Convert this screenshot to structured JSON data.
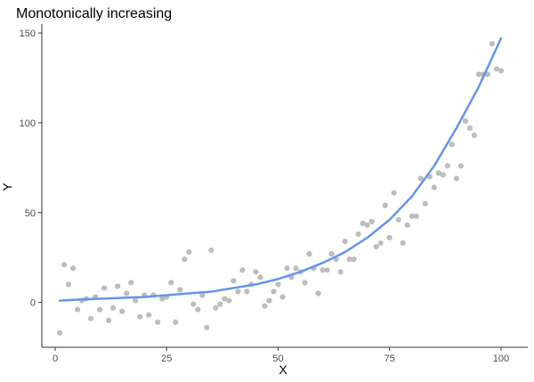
{
  "chart_data": {
    "type": "scatter",
    "title": "Monotonically increasing",
    "xlabel": "X",
    "ylabel": "Y",
    "xlim": [
      -3,
      106
    ],
    "ylim": [
      -25,
      155
    ],
    "x_ticks": [
      0,
      25,
      50,
      75,
      100
    ],
    "y_ticks": [
      0,
      50,
      100,
      150
    ],
    "grid": false,
    "colors": {
      "points": "#bdbdbd",
      "fit_line": "#6495ed",
      "axis": "#333333"
    },
    "series": [
      {
        "type": "scatter",
        "x": [
          1,
          2,
          3,
          4,
          5,
          6,
          7,
          8,
          9,
          10,
          11,
          12,
          13,
          14,
          15,
          16,
          17,
          18,
          19,
          20,
          21,
          22,
          23,
          24,
          25,
          26,
          27,
          28,
          29,
          30,
          31,
          32,
          33,
          34,
          35,
          36,
          37,
          38,
          39,
          40,
          41,
          42,
          43,
          44,
          45,
          46,
          47,
          48,
          49,
          50,
          51,
          52,
          53,
          54,
          55,
          56,
          57,
          58,
          59,
          60,
          61,
          62,
          63,
          64,
          65,
          66,
          67,
          68,
          69,
          70,
          71,
          72,
          73,
          74,
          75,
          76,
          77,
          78,
          79,
          80,
          81,
          82,
          83,
          84,
          85,
          86,
          87,
          88,
          89,
          90,
          91,
          92,
          93,
          94,
          95,
          96,
          97,
          98,
          99,
          100
        ],
        "y": [
          -17,
          21,
          10,
          19,
          -4,
          1,
          2,
          -9,
          3,
          -4,
          8,
          -10,
          -3,
          9,
          -5,
          5,
          11,
          1,
          -8,
          4,
          -7,
          4,
          -11,
          2,
          3,
          11,
          -11,
          7,
          24,
          28,
          -1,
          -4,
          4,
          -14,
          29,
          -3,
          -1,
          2,
          1,
          12,
          6,
          18,
          6,
          10,
          17,
          14,
          -2,
          1,
          6,
          10,
          3,
          19,
          14,
          19,
          17,
          11,
          27,
          19,
          5,
          18,
          18,
          27,
          24,
          17,
          34,
          24,
          24,
          38,
          44,
          43,
          45,
          31,
          33,
          54,
          36,
          61,
          46,
          33,
          43,
          48,
          48,
          69,
          55,
          70,
          64,
          72,
          71,
          76,
          88,
          69,
          76,
          101,
          97,
          93,
          127,
          127,
          127,
          144,
          130,
          129
        ]
      },
      {
        "type": "line",
        "x": [
          1,
          5,
          10,
          15,
          20,
          25,
          30,
          35,
          40,
          45,
          50,
          55,
          60,
          65,
          70,
          75,
          80,
          85,
          90,
          95,
          100
        ],
        "y": [
          1,
          1.5,
          2,
          2.5,
          3,
          4,
          5,
          6,
          8,
          10,
          13,
          17,
          22,
          28,
          36,
          46,
          59,
          76,
          97,
          120,
          147
        ]
      }
    ]
  }
}
